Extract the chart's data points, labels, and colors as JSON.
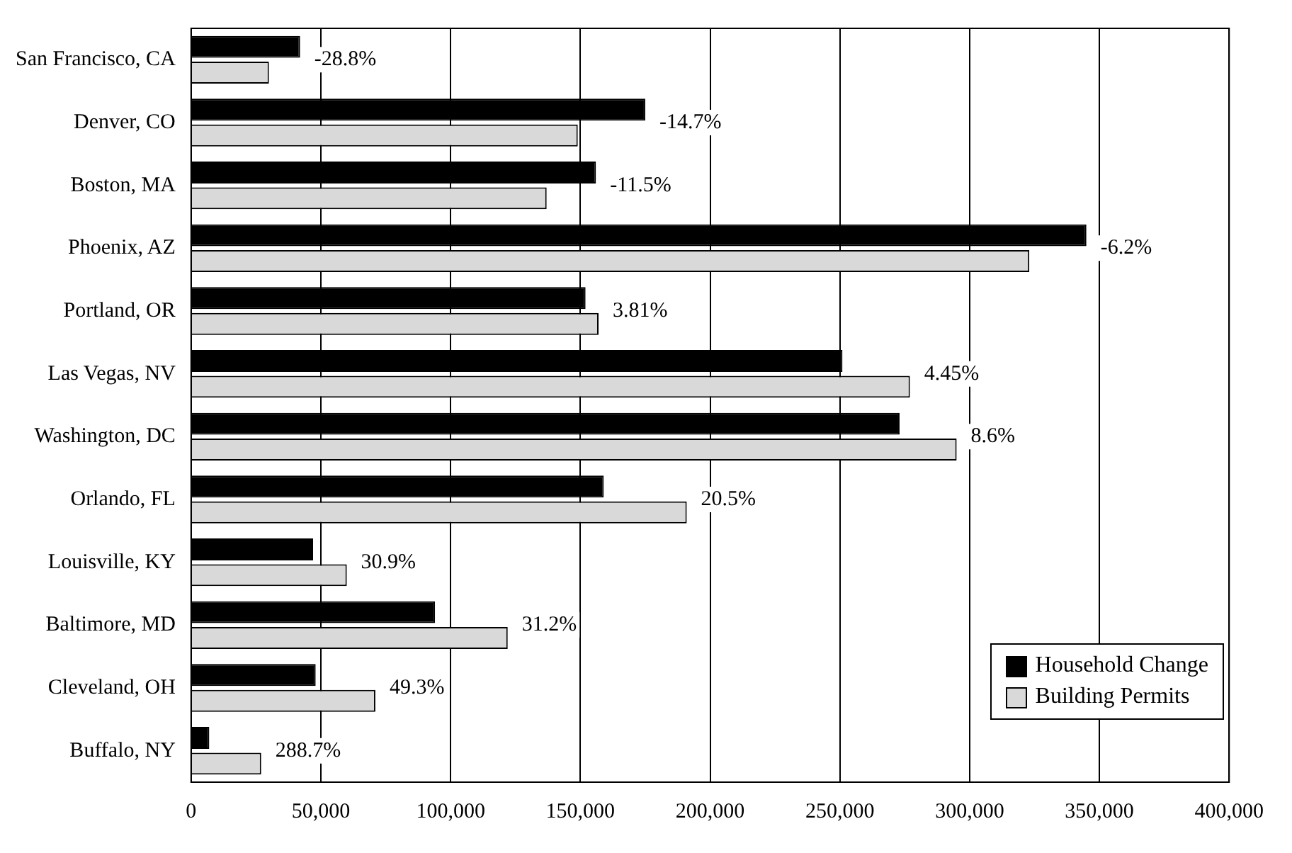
{
  "chart_data": {
    "type": "bar",
    "orientation": "horizontal",
    "categories": [
      "San Francisco, CA",
      "Denver, CO",
      "Boston, MA",
      "Phoenix, AZ",
      "Portland, OR",
      "Las Vegas, NV",
      "Washington, DC",
      "Orlando, FL",
      "Louisville, KY",
      "Baltimore, MD",
      "Cleveland, OH",
      "Buffalo, NY"
    ],
    "series": [
      {
        "name": "Household Change",
        "color": "#000000",
        "values": [
          42000,
          175000,
          156000,
          345000,
          152000,
          251000,
          273000,
          159000,
          47000,
          94000,
          48000,
          7000
        ]
      },
      {
        "name": "Building Permits",
        "color": "#d9d9d9",
        "values": [
          30000,
          149000,
          137000,
          323000,
          157000,
          277000,
          295000,
          191000,
          60000,
          122000,
          71000,
          27000
        ]
      }
    ],
    "xlim": [
      0,
      400000
    ],
    "xticks": [
      0,
      {
        "value": 50000,
        "label": "50,000"
      },
      {
        "value": 100000,
        "label": "100,000"
      },
      {
        "value": 150000,
        "label": "150,000"
      },
      {
        "value": 200000,
        "label": "200,000"
      },
      {
        "value": 250000,
        "label": "250,000"
      },
      {
        "value": 300000,
        "label": "300,000"
      },
      {
        "value": 350000,
        "label": "350,000"
      },
      {
        "value": 400000,
        "label": "400,000"
      }
    ],
    "grid": "x",
    "legend": "bottom right",
    "annotations": [
      "-28.8%",
      "-14.7%",
      "-11.5%",
      "-6.2%",
      "3.81%",
      "4.45%",
      "8.6%",
      "20.5%",
      "30.9%",
      "31.2%",
      "49.3%",
      "288.7%"
    ]
  }
}
